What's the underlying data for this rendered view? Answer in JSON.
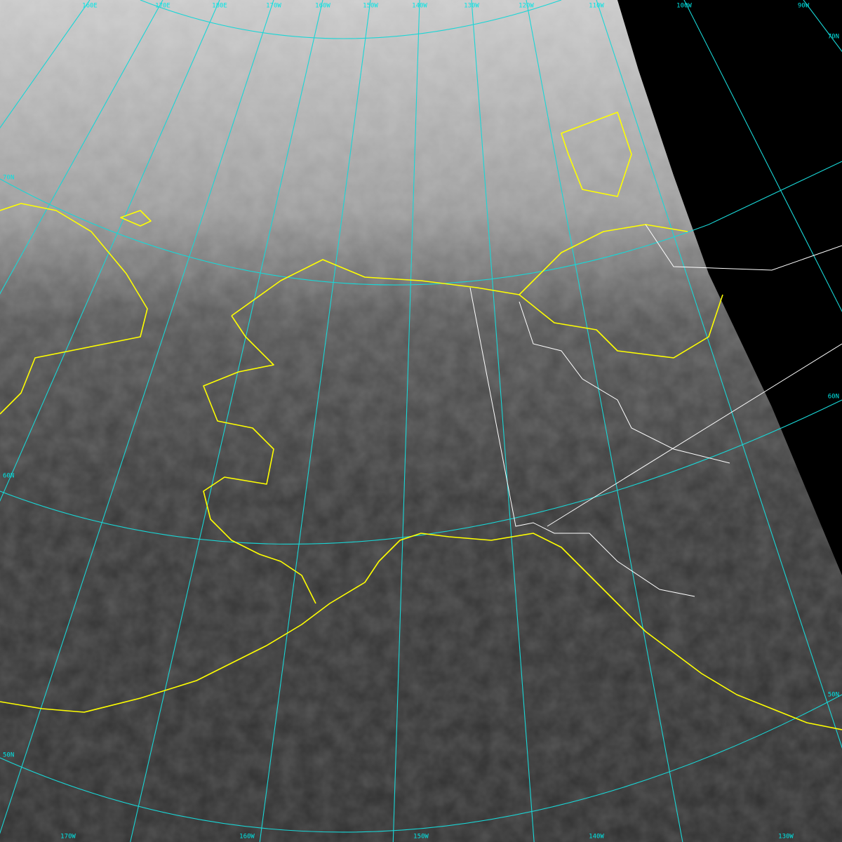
{
  "grid_labels": {
    "top": [
      "160E",
      "170E",
      "180E",
      "170W",
      "160W",
      "150W",
      "140W",
      "130W",
      "120W",
      "110W",
      "100W",
      "90W"
    ],
    "bottom": [
      "170W",
      "160W",
      "150W",
      "140W",
      "130W"
    ],
    "left": [
      "70N",
      "60N",
      "50N"
    ],
    "right": [
      "70N",
      "60N",
      "50N"
    ]
  }
}
